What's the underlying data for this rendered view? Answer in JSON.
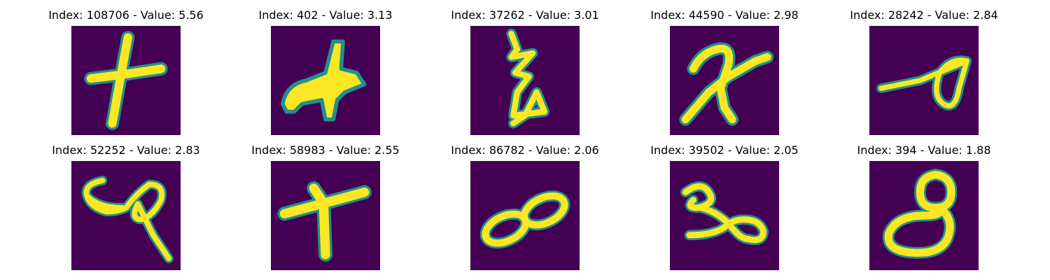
{
  "figure": {
    "background_color": "#ffffff",
    "colormap": "viridis",
    "background_pixel_color": "#440154",
    "stroke_color": "#fde725",
    "edge_color": "#21918c"
  },
  "panels": [
    {
      "title": "Index: 108706 - Value: 5.56",
      "index": 108706,
      "value": 5.56,
      "shape": "plus-cross-glyph"
    },
    {
      "title": "Index: 402 - Value: 3.13",
      "index": 402,
      "value": 3.13,
      "shape": "blob-glyph"
    },
    {
      "title": "Index: 37262 - Value: 3.01",
      "index": 37262,
      "value": 3.01,
      "shape": "zigzag-glyph"
    },
    {
      "title": "Index: 44590 - Value: 2.98",
      "index": 44590,
      "value": 2.98,
      "shape": "cursive-x-glyph"
    },
    {
      "title": "Index: 28242 - Value: 2.84",
      "index": 28242,
      "value": 2.84,
      "shape": "line-loop-glyph"
    },
    {
      "title": "Index: 52252 - Value: 2.83",
      "index": 52252,
      "value": 2.83,
      "shape": "curl-loop-glyph"
    },
    {
      "title": "Index: 58983 - Value: 2.55",
      "index": 58983,
      "value": 2.55,
      "shape": "t-shape-glyph"
    },
    {
      "title": "Index: 86782 - Value: 2.06",
      "index": 86782,
      "value": 2.06,
      "shape": "infinity-glyph"
    },
    {
      "title": "Index: 39502 - Value: 2.05",
      "index": 39502,
      "value": 2.05,
      "shape": "squiggle-loop-glyph"
    },
    {
      "title": "Index: 394 - Value: 1.88",
      "index": 394,
      "value": 1.88,
      "shape": "eight-glyph"
    }
  ]
}
